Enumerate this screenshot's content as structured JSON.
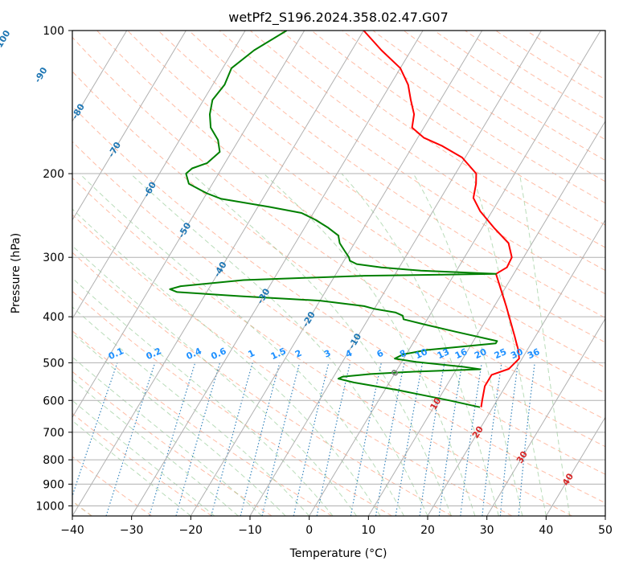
{
  "chart_data": {
    "type": "line",
    "subtype": "skew-t log-p diagram",
    "title": "wetPf2_S196.2024.358.02.47.G07",
    "xlabel": "Temperature (°C)",
    "ylabel": "Pressure (hPa)",
    "xlim": [
      -40,
      50
    ],
    "ylim": [
      1050,
      100
    ],
    "y_scale": "log",
    "x_ticks": [
      -40,
      -30,
      -20,
      -10,
      0,
      10,
      20,
      30,
      40,
      50
    ],
    "y_ticks": [
      100,
      200,
      300,
      400,
      500,
      600,
      700,
      800,
      900,
      1000
    ],
    "grid": true,
    "skewed_isotherms_deg_c": {
      "values": [
        -100,
        -90,
        -80,
        -70,
        -60,
        -50,
        -40,
        -30,
        -20,
        -10,
        0,
        10,
        20,
        30,
        40
      ],
      "labeled": [
        {
          "text": "-100",
          "color": "#1f77b4"
        },
        {
          "text": "-90",
          "color": "#1f77b4"
        },
        {
          "text": "-80",
          "color": "#1f77b4"
        },
        {
          "text": "-70",
          "color": "#1f77b4"
        },
        {
          "text": "-60",
          "color": "#1f77b4"
        },
        {
          "text": "-50",
          "color": "#1f77b4"
        },
        {
          "text": "-40",
          "color": "#1f77b4"
        },
        {
          "text": "-30",
          "color": "#1f77b4"
        },
        {
          "text": "-20",
          "color": "#1f77b4"
        },
        {
          "text": "-10",
          "color": "#1f77b4"
        },
        {
          "text": "0",
          "color": "#808080"
        },
        {
          "text": "10",
          "color": "#d62728"
        },
        {
          "text": "20",
          "color": "#d62728"
        },
        {
          "text": "30",
          "color": "#d62728"
        },
        {
          "text": "40",
          "color": "#d62728"
        }
      ]
    },
    "mixing_ratio_labels": [
      "0.1",
      "0.2",
      "0.4",
      "0.6",
      "1",
      "1.5",
      "2",
      "3",
      "4",
      "6",
      "8",
      "10",
      "13",
      "16",
      "20",
      "25",
      "30",
      "36"
    ],
    "mixing_ratio_values_g_per_kg": [
      0.1,
      0.2,
      0.4,
      0.6,
      1,
      1.5,
      2,
      3,
      4,
      6,
      8,
      10,
      13,
      16,
      20,
      25,
      30,
      36
    ],
    "series": [
      {
        "role": "temperature",
        "color": "#ff0000",
        "points": [
          [
            620,
            18.0
          ],
          [
            600,
            17.5
          ],
          [
            560,
            16.5
          ],
          [
            530,
            16.5
          ],
          [
            515,
            18.8
          ],
          [
            490,
            19.5
          ],
          [
            470,
            18.5
          ],
          [
            455,
            17.5
          ],
          [
            440,
            16.5
          ],
          [
            380,
            12.0
          ],
          [
            325,
            7.0
          ],
          [
            315,
            8.2
          ],
          [
            300,
            8.0
          ],
          [
            280,
            6.0
          ],
          [
            260,
            2.0
          ],
          [
            240,
            -2.0
          ],
          [
            225,
            -4.5
          ],
          [
            210,
            -5.5
          ],
          [
            200,
            -6.5
          ],
          [
            185,
            -10.5
          ],
          [
            175,
            -15.0
          ],
          [
            168,
            -19.0
          ],
          [
            160,
            -22.0
          ],
          [
            150,
            -23.0
          ],
          [
            140,
            -25.0
          ],
          [
            130,
            -27.0
          ],
          [
            120,
            -30.0
          ],
          [
            110,
            -35.0
          ],
          [
            100,
            -40.0
          ]
        ]
      },
      {
        "role": "dewpoint",
        "color": "#008000",
        "points": [
          [
            620,
            17.8
          ],
          [
            600,
            12.0
          ],
          [
            570,
            2.0
          ],
          [
            560,
            -2.0
          ],
          [
            550,
            -6.0
          ],
          [
            540,
            -9.0
          ],
          [
            535,
            -8.5
          ],
          [
            528,
            -4.0
          ],
          [
            522,
            3.0
          ],
          [
            516,
            14.0
          ],
          [
            510,
            11.0
          ],
          [
            498,
            2.5
          ],
          [
            490,
            -1.5
          ],
          [
            480,
            -0.5
          ],
          [
            470,
            3.0
          ],
          [
            455,
            14.0
          ],
          [
            450,
            14.0
          ],
          [
            430,
            6.0
          ],
          [
            415,
            0.0
          ],
          [
            405,
            -4.0
          ],
          [
            398,
            -4.5
          ],
          [
            392,
            -6.0
          ],
          [
            385,
            -10.0
          ],
          [
            380,
            -12.0
          ],
          [
            370,
            -20.0
          ],
          [
            362,
            -34.0
          ],
          [
            355,
            -45.0
          ],
          [
            350,
            -46.5
          ],
          [
            345,
            -45.0
          ],
          [
            335,
            -35.0
          ],
          [
            328,
            -15.0
          ],
          [
            325,
            7.0
          ],
          [
            320,
            -6.0
          ],
          [
            315,
            -13.0
          ],
          [
            310,
            -17.5
          ],
          [
            305,
            -19.0
          ],
          [
            300,
            -19.5
          ],
          [
            290,
            -21.0
          ],
          [
            280,
            -22.5
          ],
          [
            270,
            -23.5
          ],
          [
            260,
            -26.0
          ],
          [
            250,
            -29.0
          ],
          [
            242,
            -32.0
          ],
          [
            235,
            -38.0
          ],
          [
            226,
            -47.0
          ],
          [
            220,
            -50.0
          ],
          [
            210,
            -54.0
          ],
          [
            200,
            -55.5
          ],
          [
            195,
            -55.0
          ],
          [
            190,
            -53.0
          ],
          [
            180,
            -52.0
          ],
          [
            170,
            -53.5
          ],
          [
            160,
            -56.0
          ],
          [
            150,
            -57.5
          ],
          [
            140,
            -58.5
          ],
          [
            130,
            -58.0
          ],
          [
            120,
            -58.5
          ],
          [
            110,
            -56.5
          ],
          [
            100,
            -53.0
          ]
        ]
      }
    ]
  }
}
